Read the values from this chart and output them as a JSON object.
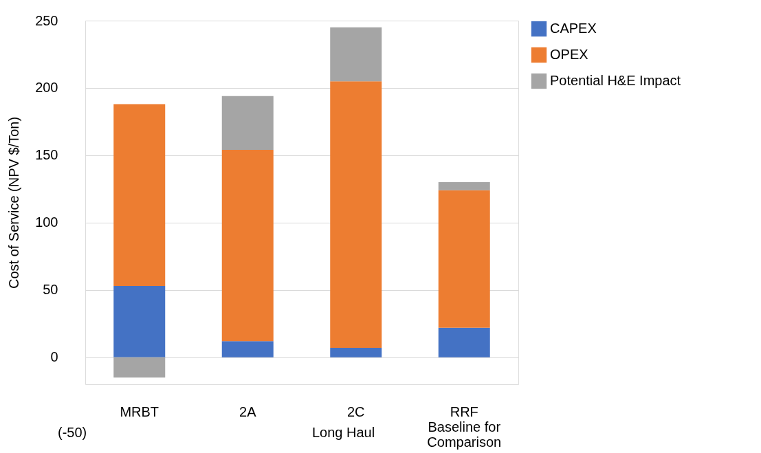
{
  "chart_data": {
    "type": "bar",
    "stacked": true,
    "ylabel": "Cost of Service (NPV $/Ton)",
    "categories": [
      "MRBT",
      "2A",
      "2C",
      "RRF\nBaseline for\nComparison"
    ],
    "series": [
      {
        "name": "CAPEX",
        "color": "#4472c4",
        "values": [
          53,
          12,
          7,
          22
        ]
      },
      {
        "name": "OPEX",
        "color": "#ed7d31",
        "values": [
          135,
          142,
          198,
          102
        ]
      },
      {
        "name": "Potential H&E Impact",
        "color": "#a5a5a5",
        "values": [
          -15,
          40,
          40,
          6
        ]
      }
    ],
    "ylim": [
      -20,
      250
    ],
    "yticks": [
      0,
      50,
      100,
      150,
      200,
      250
    ],
    "grid": "y",
    "legend": "right",
    "annotations": [
      "(-50)",
      "Long Haul"
    ]
  }
}
